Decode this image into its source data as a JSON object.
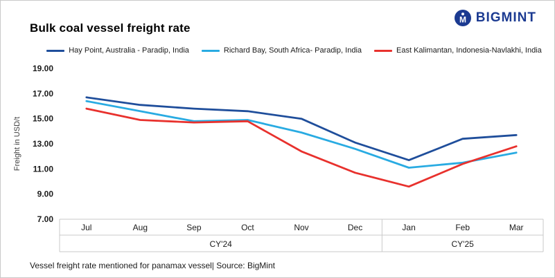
{
  "header": {
    "title": "Bulk coal vessel freight rate",
    "brand": "BIGMINT",
    "brand_color": "#1b3a91"
  },
  "footer": {
    "note": "Vessel freight rate mentioned for panamax vessel| Source: BigMint"
  },
  "chart_data": {
    "type": "line",
    "title": "Bulk coal vessel freight rate",
    "ylabel": "Freight in USD/t",
    "xlabel": "",
    "ylim": [
      7,
      19
    ],
    "yticks": [
      7,
      9,
      11,
      13,
      15,
      17,
      19
    ],
    "grid": false,
    "legend_position": "top",
    "categories": [
      "Jul",
      "Aug",
      "Sep",
      "Oct",
      "Nov",
      "Dec",
      "Jan",
      "Feb",
      "Mar"
    ],
    "group_labels": [
      {
        "label": "CY'24",
        "span": [
          0,
          5
        ]
      },
      {
        "label": "CY'25",
        "span": [
          6,
          8
        ]
      }
    ],
    "series": [
      {
        "name": "Hay Point, Australia - Paradip, India",
        "color": "#1f4e9b",
        "values": [
          16.7,
          16.1,
          15.8,
          15.6,
          15.0,
          13.1,
          11.7,
          13.4,
          13.7
        ]
      },
      {
        "name": "Richard Bay, South Africa- Paradip, India",
        "color": "#29abe2",
        "values": [
          16.4,
          15.6,
          14.8,
          14.9,
          13.9,
          12.6,
          11.1,
          11.5,
          12.3
        ]
      },
      {
        "name": "East Kalimantan, Indonesia-Navlakhi, India",
        "color": "#e8312d",
        "values": [
          15.8,
          14.9,
          14.7,
          14.8,
          12.4,
          10.7,
          9.6,
          11.4,
          12.8
        ]
      }
    ]
  }
}
